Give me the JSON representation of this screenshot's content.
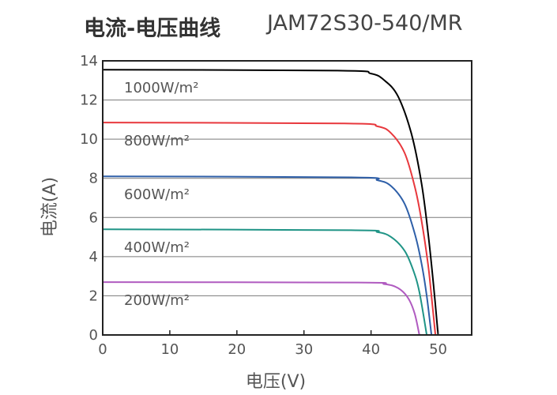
{
  "title": "电流-电压曲线",
  "model": "JAM72S30-540/MR",
  "colors": {
    "frame": "#222222",
    "grid": "#7a7a7a",
    "series": [
      "#000000",
      "#e8383d",
      "#2e5fa8",
      "#1f9486",
      "#b05bc0"
    ]
  },
  "chart_data": {
    "type": "line",
    "title": "电流-电压曲线 JAM72S30-540/MR",
    "xlabel": "电压(V)",
    "ylabel": "电流(A)",
    "xlim": [
      0,
      55
    ],
    "ylim": [
      0,
      14
    ],
    "xticks": [
      0,
      10,
      20,
      30,
      40,
      50
    ],
    "yticks": [
      0,
      2,
      4,
      6,
      8,
      10,
      12,
      14
    ],
    "grid": "horizontal",
    "series": [
      {
        "name": "1000W/m²",
        "isc": 13.55,
        "voc": 50.0,
        "points": [
          [
            0,
            13.55
          ],
          [
            35,
            13.5
          ],
          [
            40,
            13.35
          ],
          [
            42,
            13.0
          ],
          [
            44,
            12.2
          ],
          [
            46,
            10.3
          ],
          [
            47.5,
            7.8
          ],
          [
            48.5,
            5.2
          ],
          [
            49.3,
            2.6
          ],
          [
            50.0,
            0
          ]
        ]
      },
      {
        "name": "800W/m²",
        "isc": 10.85,
        "voc": 49.6,
        "points": [
          [
            0,
            10.85
          ],
          [
            36,
            10.8
          ],
          [
            41,
            10.65
          ],
          [
            43,
            10.3
          ],
          [
            45,
            9.3
          ],
          [
            46.5,
            7.6
          ],
          [
            47.5,
            5.9
          ],
          [
            48.5,
            3.6
          ],
          [
            49.0,
            2.0
          ],
          [
            49.6,
            0
          ]
        ]
      },
      {
        "name": "600W/m²",
        "isc": 8.1,
        "voc": 49.0,
        "points": [
          [
            0,
            8.1
          ],
          [
            37,
            8.05
          ],
          [
            41,
            7.9
          ],
          [
            43,
            7.6
          ],
          [
            45,
            6.7
          ],
          [
            46.5,
            5.2
          ],
          [
            47.5,
            3.7
          ],
          [
            48.3,
            2.0
          ],
          [
            49.0,
            0
          ]
        ]
      },
      {
        "name": "400W/m²",
        "isc": 5.4,
        "voc": 48.3,
        "points": [
          [
            0,
            5.4
          ],
          [
            37,
            5.35
          ],
          [
            41,
            5.25
          ],
          [
            43,
            5.0
          ],
          [
            45,
            4.3
          ],
          [
            46.3,
            3.3
          ],
          [
            47.2,
            2.2
          ],
          [
            48.3,
            0
          ]
        ]
      },
      {
        "name": "200W/m²",
        "isc": 2.7,
        "voc": 47.2,
        "points": [
          [
            0,
            2.7
          ],
          [
            38,
            2.68
          ],
          [
            42,
            2.6
          ],
          [
            44,
            2.4
          ],
          [
            45.5,
            1.9
          ],
          [
            46.5,
            1.1
          ],
          [
            47.2,
            0
          ]
        ]
      }
    ]
  }
}
